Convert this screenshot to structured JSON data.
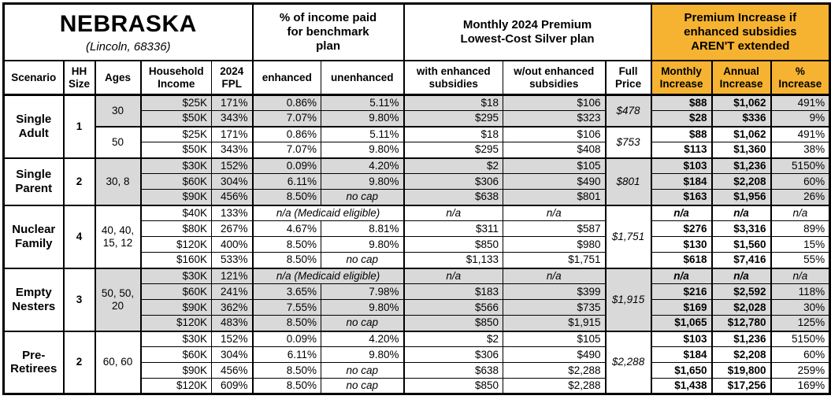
{
  "colors": {
    "accent_orange": "#F6B331",
    "shade_gray": "#D9D9D9",
    "border_black": "#000000"
  },
  "header": {
    "region": "NEBRASKA",
    "location": "(Lincoln, 68336)",
    "benchmark_section": "% of income paid for benchmark plan",
    "premium_section": "Monthly 2024 Premium Lowest-Cost Silver plan",
    "increase_section": "Premium Increase if enhanced subsidies AREN'T extended"
  },
  "columns": [
    "Scenario",
    "HH Size",
    "Ages",
    "Household Income",
    "2024 FPL",
    "enhanced",
    "unenhanced",
    "with enhanced subsidies",
    "w/out enhanced subsidies",
    "Full Price",
    "Monthly Increase",
    "Annual Increase",
    "% Increase"
  ],
  "groups": [
    {
      "scenario": "Single Adult",
      "hh_size": "1",
      "subgroups": [
        {
          "ages": "30",
          "full_price": "$478",
          "shaded": true,
          "rows": [
            {
              "income": "$25K",
              "fpl": "171%",
              "enhanced": "0.86%",
              "unenhanced": "5.11%",
              "with_sub": "$18",
              "wout_sub": "$106",
              "monthly": "$88",
              "annual": "$1,062",
              "pct": "491%"
            },
            {
              "income": "$50K",
              "fpl": "343%",
              "enhanced": "7.07%",
              "unenhanced": "9.80%",
              "with_sub": "$295",
              "wout_sub": "$323",
              "monthly": "$28",
              "annual": "$336",
              "pct": "9%"
            }
          ]
        },
        {
          "ages": "50",
          "full_price": "$753",
          "shaded": false,
          "rows": [
            {
              "income": "$25K",
              "fpl": "171%",
              "enhanced": "0.86%",
              "unenhanced": "5.11%",
              "with_sub": "$18",
              "wout_sub": "$106",
              "monthly": "$88",
              "annual": "$1,062",
              "pct": "491%"
            },
            {
              "income": "$50K",
              "fpl": "343%",
              "enhanced": "7.07%",
              "unenhanced": "9.80%",
              "with_sub": "$295",
              "wout_sub": "$408",
              "monthly": "$113",
              "annual": "$1,360",
              "pct": "38%"
            }
          ]
        }
      ]
    },
    {
      "scenario": "Single Parent",
      "hh_size": "2",
      "subgroups": [
        {
          "ages": "30, 8",
          "full_price": "$801",
          "shaded": true,
          "rows": [
            {
              "income": "$30K",
              "fpl": "152%",
              "enhanced": "0.09%",
              "unenhanced": "4.20%",
              "with_sub": "$2",
              "wout_sub": "$105",
              "monthly": "$103",
              "annual": "$1,236",
              "pct": "5150%"
            },
            {
              "income": "$60K",
              "fpl": "304%",
              "enhanced": "6.11%",
              "unenhanced": "9.80%",
              "with_sub": "$306",
              "wout_sub": "$490",
              "monthly": "$184",
              "annual": "$2,208",
              "pct": "60%"
            },
            {
              "income": "$90K",
              "fpl": "456%",
              "enhanced": "8.50%",
              "unenhanced": "no cap",
              "with_sub": "$638",
              "wout_sub": "$801",
              "monthly": "$163",
              "annual": "$1,956",
              "pct": "26%"
            }
          ]
        }
      ]
    },
    {
      "scenario": "Nuclear Family",
      "hh_size": "4",
      "subgroups": [
        {
          "ages": "40, 40, 15, 12",
          "full_price": "$1,751",
          "shaded": false,
          "rows": [
            {
              "income": "$40K",
              "fpl": "133%",
              "medicaid": "n/a (Medicaid eligible)",
              "with_sub": "n/a",
              "wout_sub": "n/a",
              "monthly": "n/a",
              "annual": "n/a",
              "pct": "n/a"
            },
            {
              "income": "$80K",
              "fpl": "267%",
              "enhanced": "4.67%",
              "unenhanced": "8.81%",
              "with_sub": "$311",
              "wout_sub": "$587",
              "monthly": "$276",
              "annual": "$3,316",
              "pct": "89%"
            },
            {
              "income": "$120K",
              "fpl": "400%",
              "enhanced": "8.50%",
              "unenhanced": "9.80%",
              "with_sub": "$850",
              "wout_sub": "$980",
              "monthly": "$130",
              "annual": "$1,560",
              "pct": "15%"
            },
            {
              "income": "$160K",
              "fpl": "533%",
              "enhanced": "8.50%",
              "unenhanced": "no cap",
              "with_sub": "$1,133",
              "wout_sub": "$1,751",
              "monthly": "$618",
              "annual": "$7,416",
              "pct": "55%"
            }
          ]
        }
      ]
    },
    {
      "scenario": "Empty Nesters",
      "hh_size": "3",
      "subgroups": [
        {
          "ages": "50, 50, 20",
          "full_price": "$1,915",
          "shaded": true,
          "rows": [
            {
              "income": "$30K",
              "fpl": "121%",
              "medicaid": "n/a (Medicaid eligible)",
              "with_sub": "n/a",
              "wout_sub": "n/a",
              "monthly": "n/a",
              "annual": "n/a",
              "pct": "n/a"
            },
            {
              "income": "$60K",
              "fpl": "241%",
              "enhanced": "3.65%",
              "unenhanced": "7.98%",
              "with_sub": "$183",
              "wout_sub": "$399",
              "monthly": "$216",
              "annual": "$2,592",
              "pct": "118%"
            },
            {
              "income": "$90K",
              "fpl": "362%",
              "enhanced": "7.55%",
              "unenhanced": "9.80%",
              "with_sub": "$566",
              "wout_sub": "$735",
              "monthly": "$169",
              "annual": "$2,028",
              "pct": "30%"
            },
            {
              "income": "$120K",
              "fpl": "483%",
              "enhanced": "8.50%",
              "unenhanced": "no cap",
              "with_sub": "$850",
              "wout_sub": "$1,915",
              "monthly": "$1,065",
              "annual": "$12,780",
              "pct": "125%"
            }
          ]
        }
      ]
    },
    {
      "scenario": "Pre-Retirees",
      "hh_size": "2",
      "subgroups": [
        {
          "ages": "60, 60",
          "full_price": "$2,288",
          "shaded": false,
          "rows": [
            {
              "income": "$30K",
              "fpl": "152%",
              "enhanced": "0.09%",
              "unenhanced": "4.20%",
              "with_sub": "$2",
              "wout_sub": "$105",
              "monthly": "$103",
              "annual": "$1,236",
              "pct": "5150%"
            },
            {
              "income": "$60K",
              "fpl": "304%",
              "enhanced": "6.11%",
              "unenhanced": "9.80%",
              "with_sub": "$306",
              "wout_sub": "$490",
              "monthly": "$184",
              "annual": "$2,208",
              "pct": "60%"
            },
            {
              "income": "$90K",
              "fpl": "456%",
              "enhanced": "8.50%",
              "unenhanced": "no cap",
              "with_sub": "$638",
              "wout_sub": "$2,288",
              "monthly": "$1,650",
              "annual": "$19,800",
              "pct": "259%"
            },
            {
              "income": "$120K",
              "fpl": "609%",
              "enhanced": "8.50%",
              "unenhanced": "no cap",
              "with_sub": "$850",
              "wout_sub": "$2,288",
              "monthly": "$1,438",
              "annual": "$17,256",
              "pct": "169%"
            }
          ]
        }
      ]
    }
  ]
}
